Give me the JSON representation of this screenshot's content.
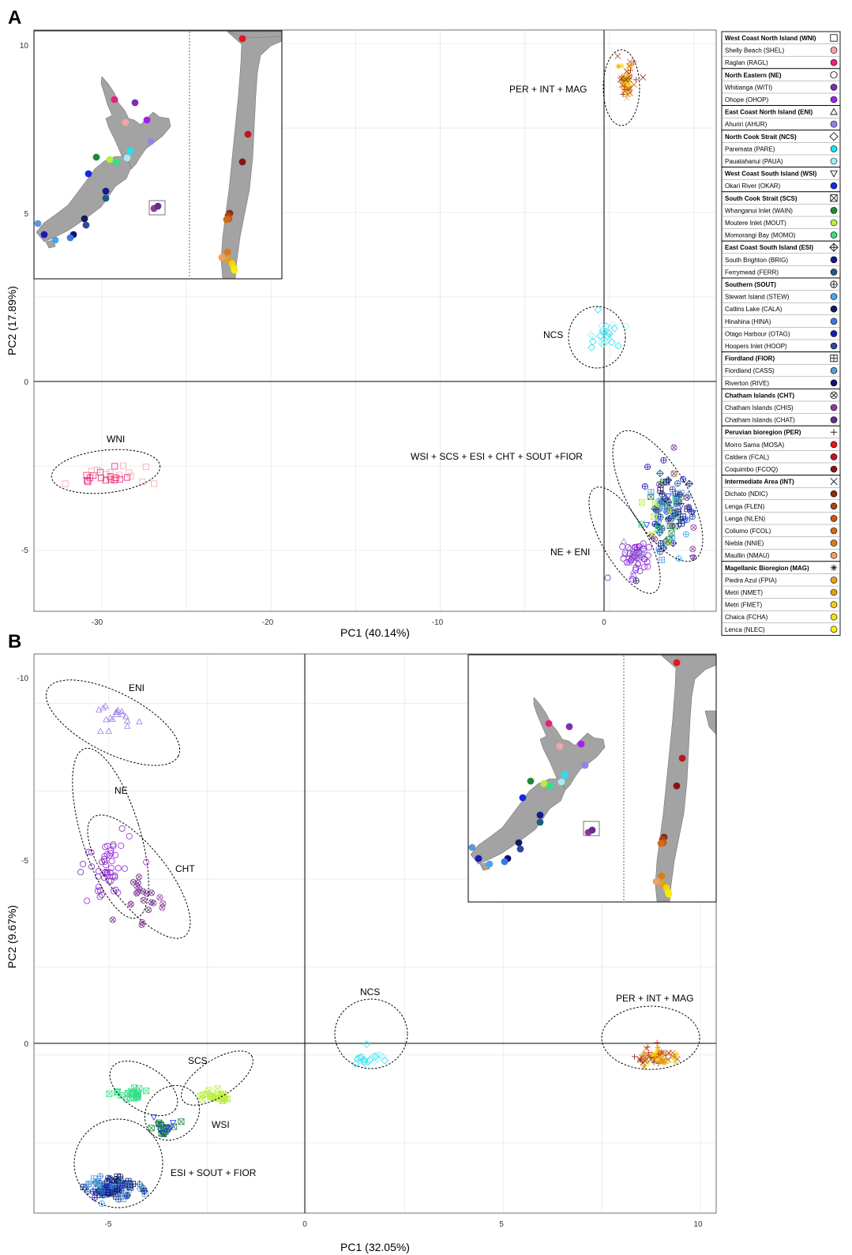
{
  "panels": [
    {
      "label": "A",
      "xlabel": "PC1 (40.14%)",
      "ylabel": "PC2 (17.89%)",
      "xticks": [
        "-30",
        "-20",
        "-10",
        "0"
      ],
      "yticks": [
        "10",
        "5",
        "0",
        "-5"
      ],
      "groups": [
        {
          "label": "PER + INT + MAG"
        },
        {
          "label": "NCS"
        },
        {
          "label": "WNI"
        },
        {
          "label": "WSI + SCS + ESI + CHT + SOUT +FIOR"
        },
        {
          "label": "NE + ENI"
        }
      ]
    },
    {
      "label": "B",
      "xlabel": "PC1 (32.05%)",
      "ylabel": "PC2 (9.67%)",
      "xticks": [
        "-5",
        "0",
        "5",
        "10"
      ],
      "yticks": [
        "-10",
        "-5",
        "0"
      ],
      "groups": [
        {
          "label": "ENI"
        },
        {
          "label": "NE"
        },
        {
          "label": "CHT"
        },
        {
          "label": "NCS"
        },
        {
          "label": "PER + INT + MAG"
        },
        {
          "label": "SCS"
        },
        {
          "label": "WSI"
        },
        {
          "label": "ESI + SOUT + FIOR"
        }
      ]
    }
  ],
  "legend": {
    "sections": [
      {
        "title": "West Coast North Island (WNI)",
        "symbol": "square",
        "items": [
          {
            "label": "Shelly Beach (SHEL)",
            "color": "#f4a6a6"
          },
          {
            "label": "Raglan (RAGL)",
            "color": "#e8217a"
          }
        ]
      },
      {
        "title": "North Eastern (NE)",
        "symbol": "circle",
        "items": [
          {
            "label": "Whitianga (WITI)",
            "color": "#7b2fb0"
          },
          {
            "label": "Ohope (OHOP)",
            "color": "#a020f0"
          }
        ]
      },
      {
        "title": "East Coast North Island (ENI)",
        "symbol": "triangle",
        "items": [
          {
            "label": "Ahuriri (AHUR)",
            "color": "#9b7fe6"
          }
        ]
      },
      {
        "title": "North Cook Strait (NCS)",
        "symbol": "diamond",
        "items": [
          {
            "label": "Paremata (PARE)",
            "color": "#1ee3f0"
          },
          {
            "label": "Pauatahanui (PAUA)",
            "color": "#9ef0f4"
          }
        ]
      },
      {
        "title": "West Coast South Island (WSI)",
        "symbol": "triangle-down",
        "items": [
          {
            "label": "Okari River (OKAR)",
            "color": "#1428e8"
          }
        ]
      },
      {
        "title": "South Cook Strait (SCS)",
        "symbol": "square-x",
        "items": [
          {
            "label": "Whanganui Inlet (WAIN)",
            "color": "#1f8a3c"
          },
          {
            "label": "Moutere Inlet (MOUT)",
            "color": "#b9ef3a"
          },
          {
            "label": "Momorangi Bay (MOMO)",
            "color": "#33e08a"
          }
        ]
      },
      {
        "title": "East Coast South Island (ESI)",
        "symbol": "diamond-plus",
        "items": [
          {
            "label": "South Brighton (BRIG)",
            "color": "#161a8a"
          },
          {
            "label": "Ferrymead (FERR)",
            "color": "#1c5c8a"
          }
        ]
      },
      {
        "title": "Southern (SOUT)",
        "symbol": "circle-plus",
        "items": [
          {
            "label": "Stewart Island (STEW)",
            "color": "#4aa6e6"
          },
          {
            "label": "Catlins Lake (CALA)",
            "color": "#141a60"
          },
          {
            "label": "Hinahina (HINA)",
            "color": "#3a78e6"
          },
          {
            "label": "Otago Harbour (OTAG)",
            "color": "#1a1ab8"
          },
          {
            "label": "Hoopers Inlet (HOOP)",
            "color": "#2d4a9a"
          }
        ]
      },
      {
        "title": "Fiordland (FIOR)",
        "symbol": "square-plus",
        "items": [
          {
            "label": "Fiordland (CASS)",
            "color": "#5b9ad6"
          },
          {
            "label": "Riverton (RIVE)",
            "color": "#0f1470"
          }
        ]
      },
      {
        "title": "Chatham Islands (CHT)",
        "symbol": "circle-x",
        "items": [
          {
            "label": "Chatham Islands (CHIS)",
            "color": "#8e3a9a"
          },
          {
            "label": "Chatham Islands (CHAT)",
            "color": "#6b2a8a"
          }
        ]
      },
      {
        "title": "Peruvian bioregion (PER)",
        "symbol": "plus",
        "items": [
          {
            "label": "Morro Sama (MOSA)",
            "color": "#e8141e"
          },
          {
            "label": "Caldera (FCAL)",
            "color": "#c01420"
          },
          {
            "label": "Coquimbo (FCOQ)",
            "color": "#8a1414"
          }
        ]
      },
      {
        "title": "Intermediate Area (INT)",
        "symbol": "x",
        "items": [
          {
            "label": "Dichato (NDIC)",
            "color": "#8a2a10"
          },
          {
            "label": "Lenga (FLEN)",
            "color": "#a8441a"
          },
          {
            "label": "Lenga (NLEN)",
            "color": "#c85a14"
          },
          {
            "label": "Coliumo (FCOL)",
            "color": "#d46a14"
          },
          {
            "label": "Niebla (NNIE)",
            "color": "#dc7a18"
          },
          {
            "label": "Maullin (NMAU)",
            "color": "#f0a060"
          }
        ]
      },
      {
        "title": "Magellanic Bioregion (MAG)",
        "symbol": "asterisk",
        "items": [
          {
            "label": "Piedra Azul (FPIA)",
            "color": "#e8a21a"
          },
          {
            "label": "Metri (NMET)",
            "color": "#e0a010"
          },
          {
            "label": "Metri (FMET)",
            "color": "#f0d020"
          },
          {
            "label": "Chaica (FCHA)",
            "color": "#f4e010"
          },
          {
            "label": "Lenca (NLEC)",
            "color": "#f8f000"
          }
        ]
      }
    ]
  },
  "chart_data": [
    {
      "type": "scatter",
      "panel": "A",
      "xlabel": "PC1 (40.14%)",
      "ylabel": "PC2 (17.89%)",
      "xlim": [
        -34,
        6.3
      ],
      "ylim": [
        -6.8,
        10.4
      ],
      "grid": true,
      "legend": "right",
      "clusters": [
        {
          "label": "PER + INT + MAG",
          "center": [
            1,
            8.9
          ],
          "spread": [
            0.5,
            0.5
          ],
          "n": 60,
          "populations": [
            "NDIC",
            "FLEN",
            "NLEN",
            "FCOL",
            "NNIE",
            "NMAU",
            "FPIA",
            "NMET",
            "FMET",
            "FCHA",
            "NLEC",
            "MOSA",
            "FCAL",
            "FCOQ"
          ]
        },
        {
          "label": "NCS",
          "center": [
            -0.4,
            1.3
          ],
          "spread": [
            1.1,
            0.5
          ],
          "n": 26,
          "populations": [
            "PARE",
            "PAUA"
          ]
        },
        {
          "label": "WNI",
          "center": [
            -29.8,
            -2.8
          ],
          "spread": [
            2.5,
            0.3
          ],
          "n": 30,
          "populations": [
            "SHEL",
            "RAGL"
          ]
        },
        {
          "label": "WSI + SCS + ESI + CHT + SOUT +FIOR",
          "center": [
            3.6,
            -3.8
          ],
          "spread": [
            1.5,
            1.2
          ],
          "n": 120,
          "populations": [
            "OKAR",
            "WAIN",
            "MOUT",
            "MOMO",
            "BRIG",
            "FERR",
            "STEW",
            "CALA",
            "HINA",
            "OTAG",
            "HOOP",
            "CASS",
            "RIVE",
            "CHIS",
            "CHAT"
          ]
        },
        {
          "label": "NE + ENI",
          "center": [
            1.6,
            -5.2
          ],
          "spread": [
            0.8,
            0.5
          ],
          "n": 60,
          "populations": [
            "WITI",
            "OHOP",
            "AHUR"
          ]
        }
      ]
    },
    {
      "type": "scatter",
      "panel": "B",
      "xlabel": "PC1 (32.05%)",
      "ylabel": "PC2 (9.67%)",
      "xlim": [
        -6.9,
        10.4
      ],
      "ylim": [
        4.5,
        -11.4
      ],
      "grid": true,
      "clusters": [
        {
          "label": "ENI",
          "center": [
            -4.9,
            -9.6
          ],
          "spread": [
            0.7,
            0.4
          ],
          "n": 18,
          "populations": [
            "AHUR"
          ]
        },
        {
          "label": "NE",
          "center": [
            -5.0,
            -5.4
          ],
          "spread": [
            0.6,
            0.9
          ],
          "n": 50,
          "populations": [
            "WITI",
            "OHOP"
          ]
        },
        {
          "label": "CHT",
          "center": [
            -4.2,
            -4.4
          ],
          "spread": [
            0.8,
            0.7
          ],
          "n": 22,
          "populations": [
            "CHIS",
            "CHAT"
          ]
        },
        {
          "label": "NCS",
          "center": [
            1.6,
            0.1
          ],
          "spread": [
            0.6,
            0.2
          ],
          "n": 22,
          "populations": [
            "PARE",
            "PAUA"
          ]
        },
        {
          "label": "PER + INT + MAG",
          "center": [
            8.9,
            0.05
          ],
          "spread": [
            0.5,
            0.25
          ],
          "n": 80,
          "populations": [
            "NDIC",
            "FLEN",
            "NLEN",
            "FCOL",
            "NNIE",
            "NMAU",
            "FPIA",
            "NMET",
            "FMET",
            "FCHA",
            "NLEC",
            "MOSA",
            "FCAL",
            "FCOQ"
          ]
        },
        {
          "label": "SCS",
          "center": [
            -4.5,
            1.1
          ],
          "spread": [
            0.4,
            0.2
          ],
          "n": 22,
          "populations": [
            "MOMO"
          ]
        },
        {
          "label": "SCS",
          "center": [
            -2.3,
            1.2
          ],
          "spread": [
            0.5,
            0.2
          ],
          "n": 22,
          "populations": [
            "MOUT"
          ]
        },
        {
          "label": "WSI",
          "center": [
            -3.6,
            2.1
          ],
          "spread": [
            0.4,
            0.25
          ],
          "n": 24,
          "populations": [
            "WAIN",
            "OKAR"
          ]
        },
        {
          "label": "ESI + SOUT + FIOR",
          "center": [
            -4.9,
            3.8
          ],
          "spread": [
            0.6,
            0.3
          ],
          "n": 110,
          "populations": [
            "BRIG",
            "FERR",
            "STEW",
            "CALA",
            "HINA",
            "OTAG",
            "HOOP",
            "CASS",
            "RIVE"
          ]
        }
      ]
    }
  ]
}
